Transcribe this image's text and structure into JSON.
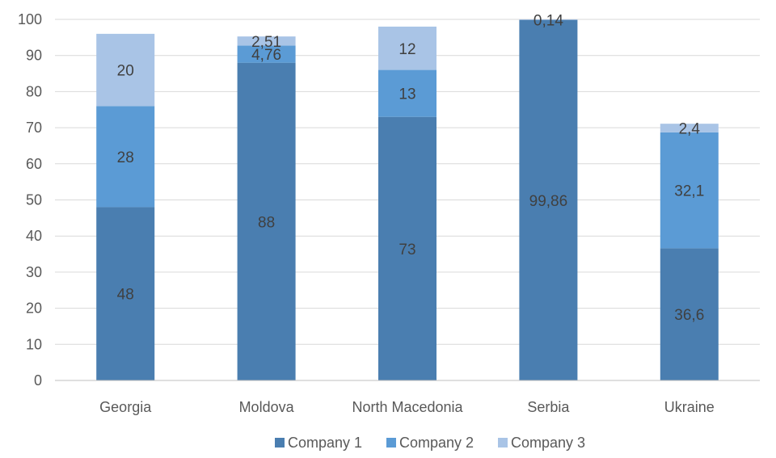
{
  "chart_data": {
    "type": "bar",
    "stacked": true,
    "categories": [
      "Georgia",
      "Moldova",
      "North Macedonia",
      "Serbia",
      "Ukraine"
    ],
    "series": [
      {
        "name": "Company 1",
        "color": "#4a7eb0",
        "values": [
          48,
          88,
          73,
          99.86,
          36.6
        ],
        "labels": [
          "48",
          "88",
          "73",
          "99,86",
          "36,6"
        ]
      },
      {
        "name": "Company 2",
        "color": "#5b9bd5",
        "values": [
          28,
          4.76,
          13,
          0,
          32.1
        ],
        "labels": [
          "28",
          "4,76",
          "13",
          "",
          "32,1"
        ]
      },
      {
        "name": "Company 3",
        "color": "#a9c4e6",
        "values": [
          20,
          2.51,
          12,
          0.14,
          2.4
        ],
        "labels": [
          "20",
          "2,51",
          "12",
          "0,14",
          "2,4"
        ]
      }
    ],
    "ylim": [
      0,
      100
    ],
    "yticks": [
      0,
      10,
      20,
      30,
      40,
      50,
      60,
      70,
      80,
      90,
      100
    ],
    "grid": true,
    "legend_position": "bottom"
  }
}
